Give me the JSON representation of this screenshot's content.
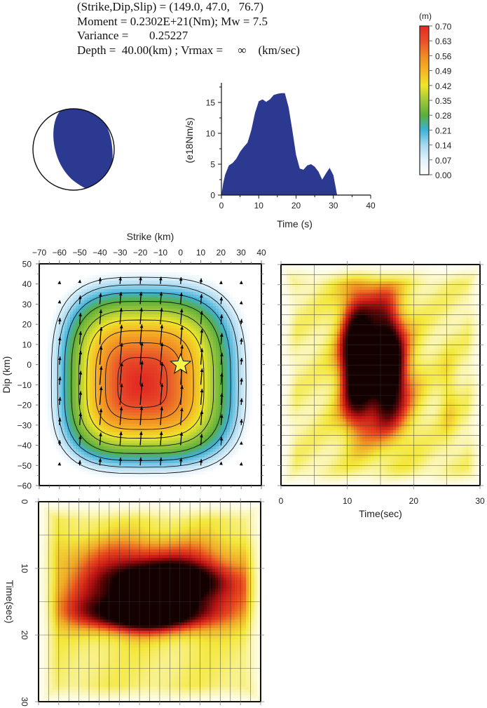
{
  "header": {
    "line1": "(Strike,Dip,Slip) = (149.0, 47.0,   76.7)",
    "line2": "Moment = 0.2302E+21(Nm); Mw = 7.5",
    "line3": "Variance =       0.25227",
    "line4": "Depth =  40.00(km) ; Vrmax =     ∞    (km/sec)"
  },
  "focal_mechanism": {
    "strike": 149.0,
    "dip": 47.0,
    "slip": 76.7,
    "fill_color": "#2b3990"
  },
  "colors": {
    "stf_fill": "#2b3990",
    "frame": "#111111"
  },
  "chart_data": [
    {
      "type": "area",
      "id": "moment-rate-function",
      "xlabel": "Time (s)",
      "ylabel": "(e18Nm/s)",
      "xlim": [
        0,
        40
      ],
      "ylim": [
        0,
        18
      ],
      "xticks": [
        0,
        10,
        20,
        30,
        40
      ],
      "yticks": [
        0,
        5,
        10,
        15
      ],
      "x": [
        0,
        0.5,
        1,
        2,
        3,
        4,
        5,
        6,
        7,
        8,
        9,
        10,
        11,
        12,
        13,
        14,
        15,
        16,
        17,
        18,
        19,
        20,
        21,
        22,
        23,
        24,
        25,
        26,
        27,
        28,
        29,
        30,
        31
      ],
      "y": [
        0,
        2.0,
        3.3,
        4.8,
        5.2,
        5.9,
        7.0,
        7.8,
        8.5,
        10.5,
        13.3,
        15.2,
        15.5,
        15.1,
        15.5,
        16.2,
        16.4,
        16.5,
        16.5,
        14.2,
        10.5,
        6.5,
        4.3,
        4.1,
        4.8,
        5.0,
        4.6,
        3.8,
        2.5,
        3.5,
        4.4,
        3.2,
        0
      ]
    },
    {
      "type": "colorbar",
      "id": "slip-colorbar",
      "label": "(m)",
      "ticks": [
        "0.00",
        "0.07",
        "0.14",
        "0.21",
        "0.28",
        "0.35",
        "0.42",
        "0.49",
        "0.56",
        "0.63",
        "0.70"
      ],
      "range": [
        0,
        0.7
      ],
      "stops": [
        "#ffffff",
        "#e2f2fb",
        "#a7d9ef",
        "#3fb1d6",
        "#5aae3c",
        "#9fc83a",
        "#eee62a",
        "#f5b525",
        "#f08a24",
        "#e8502a",
        "#e22a22"
      ]
    },
    {
      "type": "heatmap",
      "id": "slip-distribution",
      "xlabel": "Strike (km)",
      "ylabel": "Dip (km)",
      "xlim": [
        -70,
        40
      ],
      "ylim": [
        -60,
        50
      ],
      "xticks": [
        -70,
        -60,
        -50,
        -40,
        -30,
        -20,
        -10,
        0,
        10,
        20,
        30,
        40
      ],
      "yticks": [
        50,
        40,
        30,
        20,
        10,
        0,
        -10,
        -20,
        -30,
        -40,
        -50,
        -60
      ],
      "peak": {
        "strike": -20,
        "dip": -10,
        "slip": 0.7
      },
      "hypocenter": {
        "strike": 0,
        "dip": 0
      },
      "contour_levels": [
        0.07,
        0.14,
        0.21,
        0.28,
        0.35,
        0.42,
        0.49,
        0.56,
        0.63
      ],
      "arrow_strikes": [
        -60,
        -50,
        -40,
        -30,
        -20,
        -10,
        0,
        10,
        20,
        30
      ],
      "arrow_dips": [
        40,
        30,
        20,
        10,
        0,
        -10,
        -20,
        -30,
        -40,
        -50
      ],
      "rake_deg": 76.7
    },
    {
      "type": "heatmap",
      "id": "slip-rate-along-dip",
      "xlabel": "Time(sec)",
      "ylabel": "",
      "xlim": [
        0,
        30
      ],
      "xticks": [
        0,
        10,
        20,
        30
      ],
      "rows": 22,
      "peaks": [
        {
          "t": 11,
          "row": 9,
          "amp": 1.0
        },
        {
          "t": 16,
          "row": 10,
          "amp": 1.0
        }
      ]
    },
    {
      "type": "heatmap",
      "id": "slip-rate-along-strike",
      "xlabel": "",
      "ylabel": "Time(sec)",
      "ylim": [
        0,
        30
      ],
      "yticks": [
        0,
        10,
        20,
        30
      ],
      "cols": 22,
      "peaks": [
        {
          "t": 11.5,
          "col": 12,
          "amp": 1.0
        },
        {
          "t": 16.5,
          "col": 10,
          "amp": 1.0
        }
      ]
    }
  ]
}
